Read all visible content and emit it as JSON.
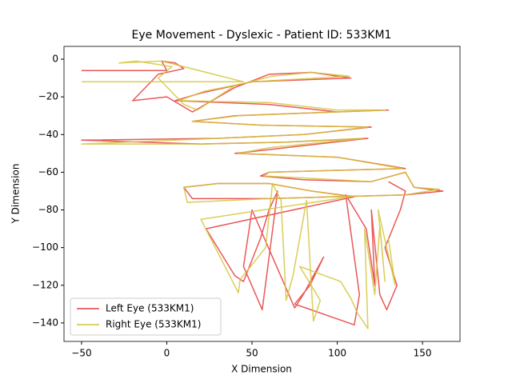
{
  "chart_data": {
    "type": "line",
    "title": "Eye Movement - Dyslexic - Patient ID: 533KM1",
    "x_label": "X Dimension",
    "y_label": "Y Dimension",
    "xlim": [
      -60.3,
      172
    ],
    "ylim": [
      -149.8,
      6.8
    ],
    "xticks": [
      {
        "value": -50,
        "label": "−50"
      },
      0,
      50,
      100,
      150
    ],
    "yticks": [
      0,
      {
        "value": -20,
        "label": "−20"
      },
      {
        "value": -40,
        "label": "−40"
      },
      {
        "value": -60,
        "label": "−60"
      },
      {
        "value": -80,
        "label": "−80"
      },
      {
        "value": -100,
        "label": "−100"
      },
      {
        "value": -120,
        "label": "−120"
      },
      {
        "value": -140,
        "label": "−140"
      }
    ],
    "legend": "lower left",
    "series": [
      {
        "name": "Left Eye (533KM1)",
        "color": "#e8393c",
        "x": [
          -50,
          0,
          -3,
          5,
          10,
          -5,
          -20,
          0,
          15,
          40,
          60,
          85,
          108,
          50,
          20,
          5,
          60,
          100,
          130,
          40,
          15,
          55,
          120,
          80,
          30,
          -50,
          20,
          70,
          118,
          60,
          40,
          100,
          140,
          60,
          55,
          80,
          120,
          140,
          145,
          162,
          140,
          100,
          60,
          15,
          10,
          30,
          60,
          85,
          110,
          23,
          40,
          45,
          55,
          60,
          65,
          56,
          45,
          50,
          75,
          80,
          92,
          84,
          75,
          110,
          113,
          105,
          117,
          122,
          120,
          125,
          129,
          135,
          128,
          137,
          140,
          130
        ],
        "values": [
          -6,
          -6,
          -1,
          -2,
          -5,
          -8,
          -22,
          -20,
          -28,
          -15,
          -8,
          -7,
          -10,
          -12,
          -18,
          -22,
          -24,
          -28,
          -27,
          -30,
          -33,
          -35,
          -36,
          -40,
          -42,
          -43,
          -45,
          -44,
          -42,
          -48,
          -50,
          -52,
          -58,
          -60,
          -62,
          -64,
          -65,
          -60,
          -68,
          -70,
          -72,
          -73,
          -74,
          -74,
          -68,
          -66,
          -66,
          -70,
          -73,
          -90,
          -115,
          -118,
          -95,
          -80,
          -70,
          -133,
          -110,
          -80,
          -132,
          -125,
          -105,
          -120,
          -130,
          -141,
          -125,
          -72,
          -90,
          -120,
          -80,
          -125,
          -133,
          -120,
          -100,
          -80,
          -70,
          -65
        ]
      },
      {
        "name": "Right Eye (533KM1)",
        "color": "#d4c43c",
        "x": [
          -50,
          45,
          -3,
          -28,
          -18,
          3,
          -5,
          10,
          18,
          40,
          62,
          85,
          107,
          50,
          22,
          7,
          60,
          100,
          128,
          42,
          15,
          55,
          118,
          80,
          30,
          -50,
          22,
          70,
          115,
          60,
          42,
          100,
          138,
          60,
          57,
          80,
          120,
          140,
          145,
          160,
          140,
          100,
          60,
          12,
          10,
          30,
          60,
          85,
          108,
          20,
          42,
          43,
          58,
          62,
          67,
          70,
          74,
          82,
          86,
          90,
          78,
          102,
          108,
          112,
          118,
          116,
          122,
          125,
          128,
          124,
          134,
          130
        ],
        "values": [
          -12,
          -12,
          -1,
          -2,
          -1,
          -4,
          -10,
          -24,
          -27,
          -14,
          -9,
          -7,
          -9,
          -12,
          -17,
          -22,
          -23,
          -27,
          -27,
          -30,
          -33,
          -35,
          -36,
          -40,
          -42,
          -45,
          -45,
          -44,
          -42,
          -47,
          -50,
          -52,
          -58,
          -60,
          -62,
          -63,
          -65,
          -60,
          -68,
          -69,
          -72,
          -73,
          -74,
          -76,
          -68,
          -66,
          -66,
          -70,
          -73,
          -85,
          -124,
          -117,
          -100,
          -66,
          -75,
          -128,
          -115,
          -75,
          -139,
          -128,
          -110,
          -118,
          -127,
          -135,
          -143,
          -90,
          -125,
          -88,
          -118,
          -80,
          -120,
          -95
        ]
      }
    ]
  }
}
